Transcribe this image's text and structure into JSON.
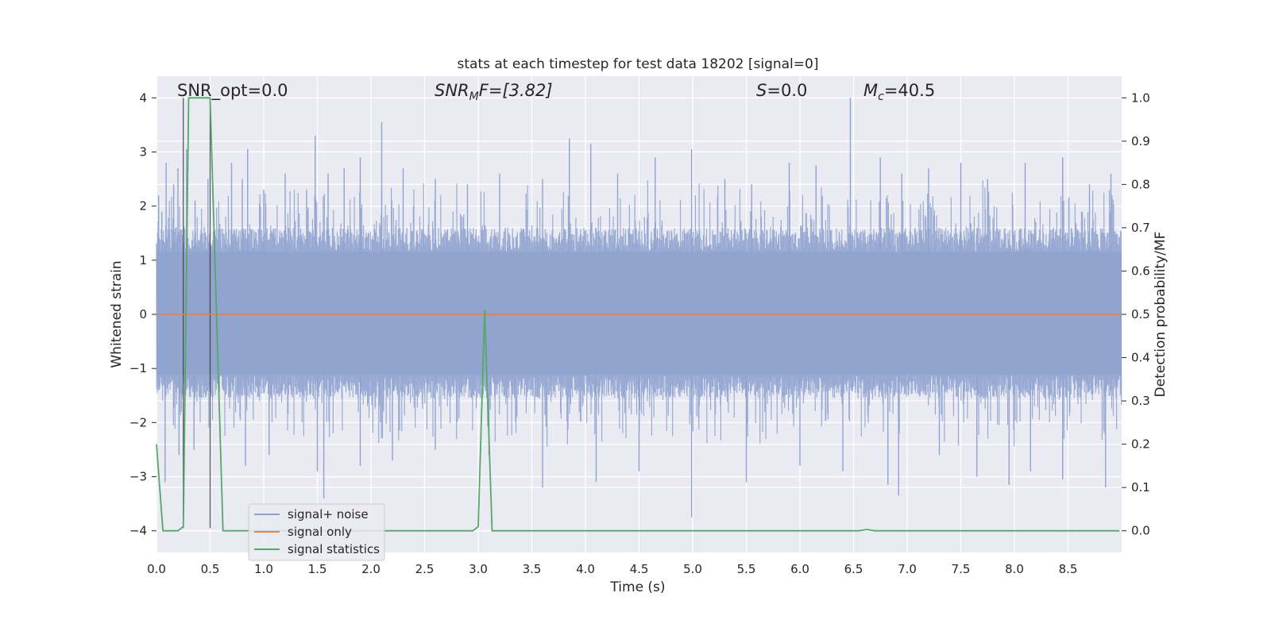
{
  "chart_data": {
    "type": "line",
    "title": "stats at each timestep for test data 18202 [signal=0]",
    "xlabel": "Time (s)",
    "ylabel": "Whitened strain",
    "y2label": "Detection probability/MF",
    "xlim": [
      0.0,
      9.0
    ],
    "ylim": [
      -4.4,
      4.4
    ],
    "y2lim": [
      -0.05,
      1.05
    ],
    "xticks": [
      "0.0",
      "0.5",
      "1.0",
      "1.5",
      "2.0",
      "2.5",
      "3.0",
      "3.5",
      "4.0",
      "4.5",
      "5.0",
      "5.5",
      "6.0",
      "6.5",
      "7.0",
      "7.5",
      "8.0",
      "8.5"
    ],
    "yticks": [
      "−4",
      "−3",
      "−2",
      "−1",
      "0",
      "1",
      "2",
      "3",
      "4"
    ],
    "y2ticks": [
      "0.0",
      "0.1",
      "0.2",
      "0.3",
      "0.4",
      "0.5",
      "0.6",
      "0.7",
      "0.8",
      "0.9",
      "1.0"
    ],
    "grid": true,
    "annotations": {
      "snr_opt": "SNR_opt=0.0",
      "snr_mf_main": "SNR",
      "snr_mf_sub": "M",
      "snr_mf_rest": "F=[3.82]",
      "s_label": "S",
      "s_rest": "=0.0",
      "mc_main": "M",
      "mc_sub": "c",
      "mc_rest": "=40.5"
    },
    "vertical_markers": [
      0.25,
      0.5
    ],
    "legend": {
      "position": "lower-left",
      "entries": [
        {
          "label": "signal+ noise",
          "color": "#8fa3cf"
        },
        {
          "label": "signal only",
          "color": "#dd8452"
        },
        {
          "label": "signal statistics",
          "color": "#55a868"
        }
      ]
    },
    "series": [
      {
        "name": "signal+ noise",
        "kind": "noise",
        "color": "#8fa3cf",
        "envelope_pos": 1.6,
        "envelope_neg": -1.55,
        "peaks": [
          {
            "x": 0.02,
            "y": 2.2
          },
          {
            "x": 0.05,
            "y": 1.9
          },
          {
            "x": 0.09,
            "y": 2.8
          },
          {
            "x": 0.16,
            "y": 2.4
          },
          {
            "x": 0.2,
            "y": 2.7
          },
          {
            "x": 0.28,
            "y": 3.05
          },
          {
            "x": 0.36,
            "y": 2.1
          },
          {
            "x": 0.48,
            "y": 2.5
          },
          {
            "x": 0.7,
            "y": 2.8
          },
          {
            "x": 0.8,
            "y": 2.5
          },
          {
            "x": 0.85,
            "y": 3.05
          },
          {
            "x": 1.0,
            "y": 2.3
          },
          {
            "x": 1.2,
            "y": 2.6
          },
          {
            "x": 1.4,
            "y": 2.3
          },
          {
            "x": 1.48,
            "y": 3.3
          },
          {
            "x": 1.6,
            "y": 2.6
          },
          {
            "x": 1.75,
            "y": 2.7
          },
          {
            "x": 1.9,
            "y": 2.9
          },
          {
            "x": 2.1,
            "y": 3.55
          },
          {
            "x": 2.3,
            "y": 2.7
          },
          {
            "x": 2.6,
            "y": 2.5
          },
          {
            "x": 2.9,
            "y": 2.4
          },
          {
            "x": 3.2,
            "y": 2.6
          },
          {
            "x": 3.6,
            "y": 2.5
          },
          {
            "x": 3.85,
            "y": 3.25
          },
          {
            "x": 4.05,
            "y": 3.15
          },
          {
            "x": 4.3,
            "y": 2.6
          },
          {
            "x": 4.65,
            "y": 2.9
          },
          {
            "x": 4.99,
            "y": 3.05
          },
          {
            "x": 5.3,
            "y": 2.5
          },
          {
            "x": 5.55,
            "y": 2.4
          },
          {
            "x": 5.9,
            "y": 2.8
          },
          {
            "x": 6.15,
            "y": 2.75
          },
          {
            "x": 6.47,
            "y": 4.0
          },
          {
            "x": 6.75,
            "y": 2.9
          },
          {
            "x": 6.95,
            "y": 2.6
          },
          {
            "x": 7.2,
            "y": 2.7
          },
          {
            "x": 7.5,
            "y": 2.8
          },
          {
            "x": 7.75,
            "y": 2.5
          },
          {
            "x": 8.1,
            "y": 2.8
          },
          {
            "x": 8.45,
            "y": 2.9
          },
          {
            "x": 8.7,
            "y": 2.4
          },
          {
            "x": 8.9,
            "y": 2.6
          },
          {
            "x": 0.08,
            "y": -3.1
          },
          {
            "x": 0.21,
            "y": -2.6
          },
          {
            "x": 0.35,
            "y": -2.5
          },
          {
            "x": 0.83,
            "y": -2.8
          },
          {
            "x": 1.05,
            "y": -2.6
          },
          {
            "x": 1.5,
            "y": -2.9
          },
          {
            "x": 1.56,
            "y": -3.4
          },
          {
            "x": 1.9,
            "y": -2.8
          },
          {
            "x": 2.2,
            "y": -2.7
          },
          {
            "x": 2.6,
            "y": -2.5
          },
          {
            "x": 3.1,
            "y": -2.6
          },
          {
            "x": 3.6,
            "y": -3.2
          },
          {
            "x": 4.1,
            "y": -3.1
          },
          {
            "x": 4.5,
            "y": -2.9
          },
          {
            "x": 4.99,
            "y": -3.75
          },
          {
            "x": 5.5,
            "y": -3.1
          },
          {
            "x": 6.0,
            "y": -2.8
          },
          {
            "x": 6.4,
            "y": -2.9
          },
          {
            "x": 6.82,
            "y": -3.15
          },
          {
            "x": 6.92,
            "y": -3.35
          },
          {
            "x": 7.3,
            "y": -2.6
          },
          {
            "x": 7.65,
            "y": -3.0
          },
          {
            "x": 7.95,
            "y": -3.15
          },
          {
            "x": 8.15,
            "y": -2.9
          },
          {
            "x": 8.45,
            "y": -3.05
          },
          {
            "x": 8.85,
            "y": -3.2
          }
        ]
      },
      {
        "name": "signal only",
        "kind": "line",
        "axis": "left",
        "color": "#dd8452",
        "x": [
          0.0,
          9.0
        ],
        "y": [
          0.0,
          0.0
        ]
      },
      {
        "name": "signal statistics",
        "kind": "line",
        "axis": "right",
        "color": "#55a868",
        "x": [
          0.0,
          0.06,
          0.2,
          0.25,
          0.3,
          0.5,
          0.62,
          2.95,
          3.0,
          3.06,
          3.13,
          6.55,
          6.62,
          6.7,
          8.98
        ],
        "y": [
          0.2,
          0.0,
          0.0,
          0.01,
          1.0,
          1.0,
          0.0,
          0.0,
          0.01,
          0.51,
          0.0,
          0.0,
          0.003,
          0.0,
          0.0
        ]
      }
    ]
  }
}
